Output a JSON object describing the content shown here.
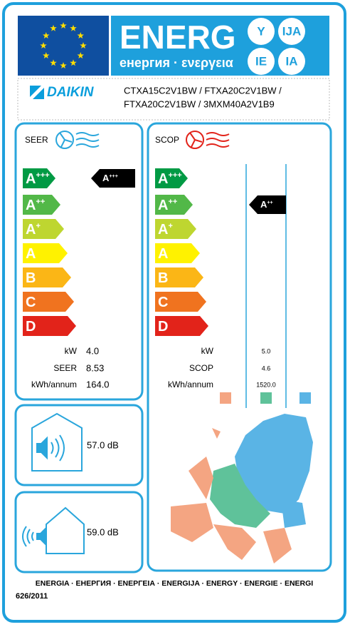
{
  "header": {
    "energ": "ENERG",
    "subtitle": "енергия · ενεργεια",
    "suffixes": [
      "Y",
      "IJA",
      "IE",
      "IA"
    ]
  },
  "supplier": "DAIKIN",
  "model_lines": [
    "CTXA15C2V1BW / FTXA20C2V1BW /",
    "FTXA20C2V1BW / 3MXM40A2V1B9"
  ],
  "cooling": {
    "label": "SEER",
    "classes": [
      {
        "letter": "A",
        "sup": "+++"
      },
      {
        "letter": "A",
        "sup": "++"
      },
      {
        "letter": "A",
        "sup": "+"
      },
      {
        "letter": "A"
      },
      {
        "letter": "B"
      },
      {
        "letter": "C"
      },
      {
        "letter": "D"
      }
    ],
    "rating": {
      "letter": "A",
      "sup": "+++"
    },
    "rows": [
      {
        "label": "kW",
        "value": "4.0"
      },
      {
        "label": "SEER",
        "value": "8.53"
      },
      {
        "label": "kWh/annum",
        "value": "164.0"
      }
    ]
  },
  "heating": {
    "label": "SCOP",
    "classes": [
      {
        "letter": "A",
        "sup": "+++"
      },
      {
        "letter": "A",
        "sup": "++"
      },
      {
        "letter": "A",
        "sup": "+"
      },
      {
        "letter": "A"
      },
      {
        "letter": "B"
      },
      {
        "letter": "C"
      },
      {
        "letter": "D"
      }
    ],
    "rating": {
      "letter": "A",
      "sup": "++"
    },
    "rows": [
      {
        "label": "kW",
        "value": "5.0"
      },
      {
        "label": "SCOP",
        "value": "4.6"
      },
      {
        "label": "kWh/annum",
        "value": "1520.0"
      }
    ]
  },
  "noise": {
    "indoor": "57.0 dB",
    "outdoor": "59.0 dB"
  },
  "footer": {
    "languages": "ENERGIA · ЕНЕРГИЯ · ΕΝΕΡΓΕΙΑ · ENERGIJA · ENERGY · ENERGIE · ENERGI",
    "regulation": "626/2011"
  }
}
